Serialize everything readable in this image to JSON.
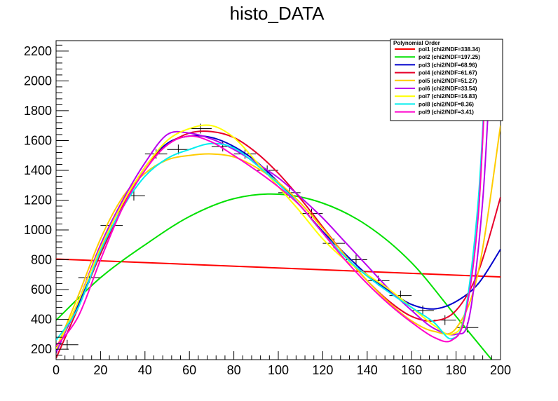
{
  "chart_data": {
    "type": "line",
    "title": "histo_DATA",
    "xlabel": "",
    "ylabel": "",
    "xlim": [
      0,
      200
    ],
    "ylim": [
      130,
      2270
    ],
    "x_ticks": [
      0,
      20,
      40,
      60,
      80,
      100,
      120,
      140,
      160,
      180,
      200
    ],
    "y_ticks": [
      200,
      400,
      600,
      800,
      1000,
      1200,
      1400,
      1600,
      1800,
      2000,
      2200
    ],
    "grid": false,
    "legend_title": "Polynomial Order",
    "legend_position": "top-right",
    "data_points": {
      "bin_half_width": 5,
      "x": [
        5,
        15,
        25,
        35,
        45,
        55,
        65,
        75,
        85,
        95,
        105,
        115,
        125,
        135,
        145,
        155,
        165,
        175,
        185,
        195
      ],
      "y": [
        230,
        680,
        1030,
        1230,
        1510,
        1540,
        1680,
        1560,
        1510,
        1400,
        1250,
        1110,
        910,
        800,
        660,
        560,
        460,
        395,
        345,
        2260
      ]
    },
    "series": [
      {
        "name": "pol1 (chi2/NDF=338.34)",
        "color": "#ff0000",
        "points": [
          [
            0,
            805
          ],
          [
            200,
            685
          ]
        ]
      },
      {
        "name": "pol2 (chi2/NDF=197.25)",
        "color": "#00e000",
        "points": [
          [
            0,
            395
          ],
          [
            20,
            680
          ],
          [
            40,
            900
          ],
          [
            60,
            1090
          ],
          [
            80,
            1210
          ],
          [
            100,
            1240
          ],
          [
            120,
            1180
          ],
          [
            140,
            1030
          ],
          [
            160,
            780
          ],
          [
            180,
            420
          ],
          [
            196,
            130
          ]
        ]
      },
      {
        "name": "pol3 (chi2/NDF=68.96)",
        "color": "#0000cc",
        "points": [
          [
            0,
            190
          ],
          [
            10,
            500
          ],
          [
            20,
            840
          ],
          [
            30,
            1160
          ],
          [
            40,
            1420
          ],
          [
            50,
            1580
          ],
          [
            60,
            1630
          ],
          [
            70,
            1620
          ],
          [
            80,
            1560
          ],
          [
            90,
            1460
          ],
          [
            100,
            1320
          ],
          [
            110,
            1160
          ],
          [
            120,
            990
          ],
          [
            130,
            840
          ],
          [
            140,
            700
          ],
          [
            150,
            590
          ],
          [
            160,
            500
          ],
          [
            170,
            470
          ],
          [
            180,
            520
          ],
          [
            190,
            640
          ],
          [
            200,
            870
          ]
        ]
      },
      {
        "name": "pol4 (chi2/NDF=61.67)",
        "color": "#e8002a",
        "points": [
          [
            0,
            140
          ],
          [
            10,
            480
          ],
          [
            20,
            840
          ],
          [
            30,
            1160
          ],
          [
            40,
            1420
          ],
          [
            50,
            1570
          ],
          [
            60,
            1650
          ],
          [
            70,
            1660
          ],
          [
            80,
            1620
          ],
          [
            90,
            1520
          ],
          [
            100,
            1380
          ],
          [
            110,
            1210
          ],
          [
            120,
            1020
          ],
          [
            130,
            830
          ],
          [
            140,
            660
          ],
          [
            150,
            520
          ],
          [
            160,
            420
          ],
          [
            170,
            390
          ],
          [
            180,
            460
          ],
          [
            190,
            720
          ],
          [
            200,
            1220
          ]
        ]
      },
      {
        "name": "pol5 (chi2/NDF=51.27)",
        "color": "#ffcc00",
        "points": [
          [
            0,
            200
          ],
          [
            10,
            560
          ],
          [
            20,
            940
          ],
          [
            30,
            1220
          ],
          [
            40,
            1380
          ],
          [
            50,
            1470
          ],
          [
            60,
            1500
          ],
          [
            70,
            1510
          ],
          [
            80,
            1490
          ],
          [
            90,
            1420
          ],
          [
            100,
            1320
          ],
          [
            110,
            1180
          ],
          [
            120,
            1010
          ],
          [
            130,
            830
          ],
          [
            140,
            660
          ],
          [
            150,
            510
          ],
          [
            160,
            390
          ],
          [
            170,
            320
          ],
          [
            180,
            340
          ],
          [
            190,
            720
          ],
          [
            200,
            1700
          ]
        ]
      },
      {
        "name": "pol6 (chi2/NDF=33.54)",
        "color": "#bb00ee",
        "points": [
          [
            0,
            175
          ],
          [
            10,
            520
          ],
          [
            20,
            900
          ],
          [
            30,
            1200
          ],
          [
            40,
            1450
          ],
          [
            50,
            1640
          ],
          [
            60,
            1650
          ],
          [
            70,
            1610
          ],
          [
            80,
            1540
          ],
          [
            90,
            1450
          ],
          [
            100,
            1350
          ],
          [
            110,
            1220
          ],
          [
            120,
            1080
          ],
          [
            130,
            920
          ],
          [
            140,
            760
          ],
          [
            150,
            600
          ],
          [
            160,
            460
          ],
          [
            170,
            340
          ],
          [
            180,
            300
          ],
          [
            186,
            420
          ],
          [
            192,
            1200
          ],
          [
            196,
            2270
          ]
        ]
      },
      {
        "name": "pol7 (chi2/NDF=16.83)",
        "color": "#ffff00",
        "points": [
          [
            0,
            200
          ],
          [
            10,
            520
          ],
          [
            20,
            880
          ],
          [
            30,
            1180
          ],
          [
            40,
            1420
          ],
          [
            50,
            1600
          ],
          [
            60,
            1680
          ],
          [
            70,
            1700
          ],
          [
            80,
            1620
          ],
          [
            90,
            1460
          ],
          [
            100,
            1290
          ],
          [
            110,
            1120
          ],
          [
            120,
            940
          ],
          [
            130,
            800
          ],
          [
            140,
            700
          ],
          [
            150,
            600
          ],
          [
            160,
            480
          ],
          [
            170,
            360
          ],
          [
            178,
            300
          ],
          [
            184,
            440
          ],
          [
            190,
            1100
          ],
          [
            194,
            2270
          ]
        ]
      },
      {
        "name": "pol8 (chi2/NDF=8.36)",
        "color": "#00eeee",
        "points": [
          [
            0,
            260
          ],
          [
            10,
            480
          ],
          [
            20,
            860
          ],
          [
            30,
            1150
          ],
          [
            40,
            1360
          ],
          [
            50,
            1480
          ],
          [
            60,
            1540
          ],
          [
            70,
            1580
          ],
          [
            80,
            1550
          ],
          [
            90,
            1440
          ],
          [
            100,
            1310
          ],
          [
            110,
            1160
          ],
          [
            120,
            980
          ],
          [
            130,
            820
          ],
          [
            140,
            690
          ],
          [
            150,
            580
          ],
          [
            160,
            480
          ],
          [
            170,
            380
          ],
          [
            178,
            270
          ],
          [
            184,
            440
          ],
          [
            190,
            1200
          ],
          [
            194,
            2270
          ]
        ]
      },
      {
        "name": "pol9 (chi2/NDF=3.41)",
        "color": "#ff00cc",
        "points": [
          [
            0,
            220
          ],
          [
            10,
            420
          ],
          [
            20,
            800
          ],
          [
            30,
            1150
          ],
          [
            40,
            1400
          ],
          [
            50,
            1570
          ],
          [
            60,
            1630
          ],
          [
            70,
            1590
          ],
          [
            80,
            1500
          ],
          [
            90,
            1400
          ],
          [
            100,
            1290
          ],
          [
            110,
            1160
          ],
          [
            120,
            980
          ],
          [
            130,
            800
          ],
          [
            140,
            640
          ],
          [
            150,
            500
          ],
          [
            160,
            380
          ],
          [
            170,
            280
          ],
          [
            178,
            260
          ],
          [
            184,
            420
          ],
          [
            190,
            1100
          ],
          [
            194,
            2270
          ]
        ]
      }
    ]
  }
}
